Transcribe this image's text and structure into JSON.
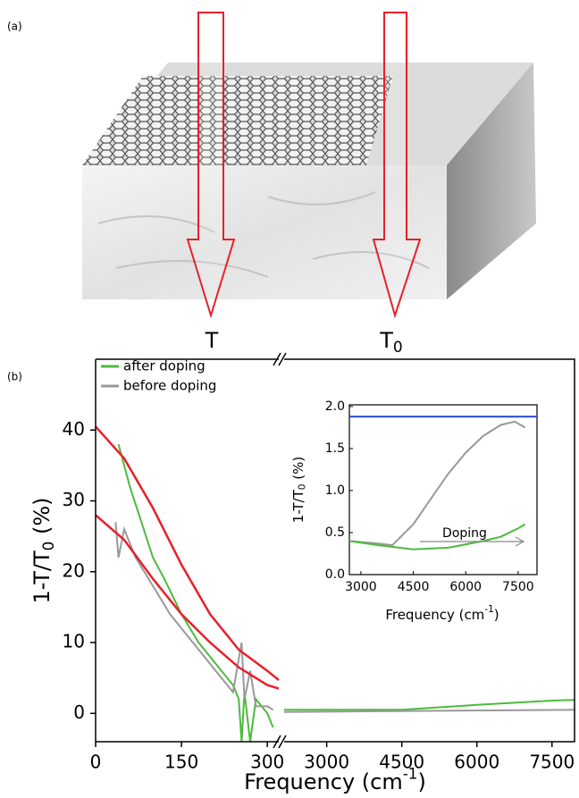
{
  "panel_a": {
    "label": "(a)",
    "arrow_left": "T",
    "arrow_right": {
      "base": "T",
      "sub": "0"
    }
  },
  "panel_b": {
    "label": "(b)"
  },
  "chart_data": [
    {
      "type": "line",
      "y_label": {
        "text": "1-T/T",
        "sub": "0",
        "after": " (%)"
      },
      "x_label": {
        "text": "Frequency (cm",
        "sup": "-1",
        "after": ")"
      },
      "ylim": [
        -4,
        50
      ],
      "yticks": [
        0,
        10,
        20,
        30,
        40
      ],
      "x_segments": [
        {
          "xlim": [
            0,
            320
          ],
          "xticks": [
            0,
            150,
            300
          ]
        },
        {
          "xlim": [
            2150,
            7950
          ],
          "xticks": [
            3000,
            4500,
            6000,
            7500
          ]
        }
      ],
      "legend": "upper left",
      "series": [
        {
          "name": "after doping",
          "color": "#4cbb3c",
          "x": [
            40,
            60,
            80,
            100,
            120,
            150,
            180,
            200,
            220,
            240,
            250,
            255,
            260,
            270,
            280,
            290,
            300,
            310,
            null,
            2150,
            4500,
            6000,
            7500,
            7950
          ],
          "values": [
            38,
            32,
            27,
            22,
            19,
            14,
            10,
            8,
            6,
            4,
            2,
            -4,
            3,
            -4,
            2,
            1,
            0,
            -2,
            null,
            0.5,
            0.5,
            1.2,
            1.8,
            1.9
          ]
        },
        {
          "name": "before doping",
          "color": "#999999",
          "x": [
            35,
            40,
            50,
            70,
            100,
            130,
            160,
            190,
            220,
            240,
            255,
            260,
            270,
            280,
            300,
            310,
            null,
            2150,
            7950
          ],
          "values": [
            27,
            22,
            26,
            22,
            18,
            14,
            11,
            8,
            5,
            3,
            10,
            2,
            6,
            1,
            1,
            0.5,
            null,
            0.2,
            0.5
          ]
        },
        {
          "color": "#e8202a",
          "x": [
            0,
            50,
            100,
            150,
            200,
            250,
            300,
            320
          ],
          "values": [
            40.5,
            36,
            29,
            21,
            14,
            9,
            6,
            4.7
          ]
        },
        {
          "color": "#e8202a",
          "x": [
            0,
            50,
            100,
            150,
            200,
            250,
            300,
            320
          ],
          "values": [
            28,
            24.5,
            19,
            14,
            10,
            6.5,
            4,
            3.5
          ]
        }
      ]
    },
    {
      "type": "line",
      "y_label": {
        "text": "1-T/T",
        "sub": "0",
        "after": " (%)"
      },
      "x_label": {
        "text": "Frequency (cm",
        "sup": "-1",
        "after": ")"
      },
      "xlim": [
        2670,
        8040
      ],
      "xticks": [
        3000,
        4500,
        6000,
        7500
      ],
      "ylim": [
        0,
        2.02
      ],
      "yticks": [
        {
          "value": 0,
          "label": "0.0"
        },
        {
          "value": 0.5,
          "label": "0.5"
        },
        {
          "value": 1,
          "label": "1.0"
        },
        {
          "value": 1.5,
          "label": "1.5"
        },
        {
          "value": 2,
          "label": "2.0"
        }
      ],
      "annotation": "Doping",
      "series": [
        {
          "color": "#2a44c8",
          "x": [
            2670,
            8040
          ],
          "values": [
            1.88,
            1.88
          ]
        },
        {
          "color": "#999999",
          "x": [
            2670,
            3500,
            3900,
            4500,
            5000,
            5500,
            6000,
            6500,
            7000,
            7400,
            7700
          ],
          "values": [
            0.4,
            0.37,
            0.35,
            0.6,
            0.9,
            1.2,
            1.45,
            1.65,
            1.78,
            1.82,
            1.75
          ]
        },
        {
          "color": "#4cbb3c",
          "x": [
            2670,
            3500,
            4500,
            5500,
            6500,
            7000,
            7500,
            7700
          ],
          "values": [
            0.4,
            0.35,
            0.3,
            0.32,
            0.4,
            0.45,
            0.55,
            0.6
          ]
        }
      ]
    }
  ]
}
